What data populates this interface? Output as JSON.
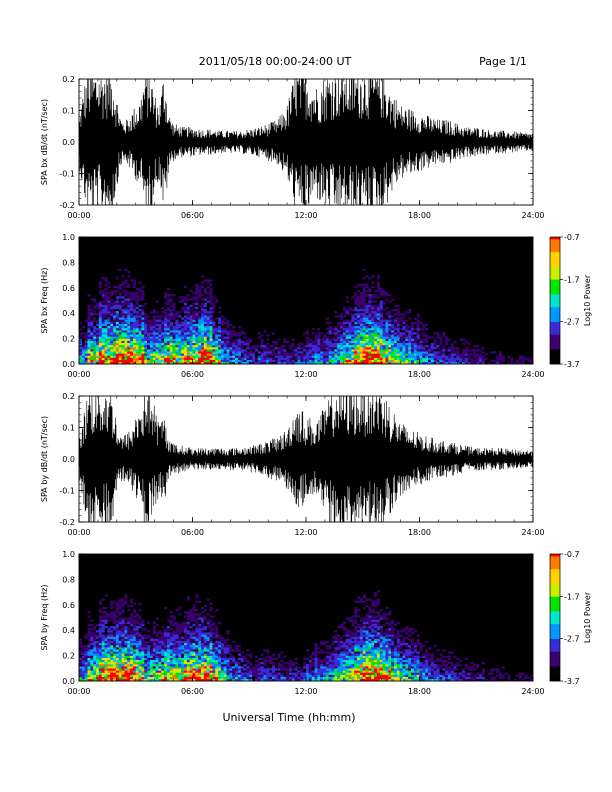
{
  "header": {
    "title": "2011/05/18  00:00-24:00 UT",
    "page": "Page 1/1"
  },
  "xlabel": "Universal Time (hh:mm)",
  "colors": {
    "background": "#ffffff",
    "trace": "#000000",
    "spectrogram_bg": "#000000",
    "colormap": [
      "#000000",
      "#3a006e",
      "#3b2bd6",
      "#0096ff",
      "#00e6c8",
      "#00e600",
      "#c8f000",
      "#ffd200",
      "#ff7800",
      "#ff0000"
    ]
  },
  "chart_data": [
    {
      "id": "bx-timeseries",
      "type": "line",
      "ylabel": "SPA bx dB/dt (nT/sec)",
      "xlim": [
        0,
        24
      ],
      "ylim": [
        -0.2,
        0.2
      ],
      "x_ticks": [
        "00:00",
        "06:00",
        "12:00",
        "18:00",
        "24:00"
      ],
      "y_ticks": [
        "-0.2",
        "-0.1",
        "0.0",
        "0.1",
        "0.2"
      ],
      "series": [
        {
          "x": [
            0,
            0.25,
            0.5,
            0.75,
            1.0,
            1.25,
            1.5,
            1.75,
            2.0,
            2.25,
            2.5,
            2.75,
            3.0,
            3.25,
            3.5,
            3.75,
            4.0,
            4.25,
            4.5,
            4.75,
            5.0,
            5.5,
            6.0,
            6.5,
            7.0,
            7.5,
            8.0,
            8.5,
            9.0,
            9.5,
            10.0,
            10.5,
            11.0,
            11.5,
            12.0,
            12.5,
            13.0,
            13.5,
            14.0,
            14.5,
            15.0,
            15.5,
            16.0,
            16.5,
            17.0,
            17.5,
            18.0,
            18.5,
            19.0,
            19.5,
            20.0,
            20.5,
            21.0,
            21.5,
            22.0,
            22.5,
            23.0,
            23.5,
            24.0
          ],
          "envelope": [
            0.06,
            0.15,
            0.2,
            0.2,
            0.2,
            0.2,
            0.2,
            0.2,
            0.12,
            0.06,
            0.06,
            0.08,
            0.1,
            0.12,
            0.2,
            0.2,
            0.13,
            0.1,
            0.2,
            0.08,
            0.05,
            0.04,
            0.04,
            0.035,
            0.035,
            0.03,
            0.03,
            0.03,
            0.035,
            0.04,
            0.05,
            0.06,
            0.1,
            0.2,
            0.2,
            0.15,
            0.18,
            0.2,
            0.2,
            0.2,
            0.2,
            0.2,
            0.2,
            0.14,
            0.1,
            0.09,
            0.08,
            0.07,
            0.06,
            0.06,
            0.05,
            0.04,
            0.04,
            0.035,
            0.03,
            0.03,
            0.028,
            0.025,
            0.025
          ]
        }
      ]
    },
    {
      "id": "bx-spectrogram",
      "type": "heatmap",
      "ylabel": "SPA bx Freq (Hz)",
      "xlim": [
        0,
        24
      ],
      "ylim": [
        0,
        1.0
      ],
      "x_ticks": [
        "00:00",
        "06:00",
        "12:00",
        "18:00",
        "24:00"
      ],
      "y_ticks": [
        "0.0",
        "0.2",
        "0.4",
        "0.6",
        "0.8",
        "1.0"
      ],
      "colorbar": {
        "label": "Log10 Power",
        "range": [
          -3.7,
          -0.7
        ],
        "ticks": [
          "-0.7",
          "-1.7",
          "-2.7",
          "-3.7"
        ]
      },
      "activity": [
        0.35,
        0.6,
        0.9,
        0.85,
        0.95,
        0.9,
        0.8,
        0.5,
        0.55,
        0.7,
        0.6,
        0.75,
        0.85,
        0.9,
        0.6,
        0.4,
        0.3,
        0.25,
        0.2,
        0.22,
        0.2,
        0.2,
        0.18,
        0.2,
        0.25,
        0.3,
        0.35,
        0.45,
        0.6,
        0.85,
        0.95,
        0.9,
        0.7,
        0.55,
        0.45,
        0.4,
        0.3,
        0.25,
        0.22,
        0.2,
        0.18,
        0.15,
        0.15,
        0.12,
        0.12,
        0.1,
        0.1,
        0.1
      ]
    },
    {
      "id": "by-timeseries",
      "type": "line",
      "ylabel": "SPA by dB/dt (nT/sec)",
      "xlim": [
        0,
        24
      ],
      "ylim": [
        -0.2,
        0.2
      ],
      "x_ticks": [
        "00:00",
        "06:00",
        "12:00",
        "18:00",
        "24:00"
      ],
      "y_ticks": [
        "-0.2",
        "-0.1",
        "0.0",
        "0.1",
        "0.2"
      ],
      "series": [
        {
          "x": [
            0,
            0.25,
            0.5,
            0.75,
            1.0,
            1.25,
            1.5,
            1.75,
            2.0,
            2.25,
            2.5,
            2.75,
            3.0,
            3.25,
            3.5,
            3.75,
            4.0,
            4.25,
            4.5,
            4.75,
            5.0,
            5.5,
            6.0,
            6.5,
            7.0,
            7.5,
            8.0,
            8.5,
            9.0,
            9.5,
            10.0,
            10.5,
            11.0,
            11.5,
            12.0,
            12.5,
            13.0,
            13.5,
            14.0,
            14.5,
            15.0,
            15.5,
            16.0,
            16.5,
            17.0,
            17.5,
            18.0,
            18.5,
            19.0,
            19.5,
            20.0,
            20.5,
            21.0,
            21.5,
            22.0,
            22.5,
            23.0,
            23.5,
            24.0
          ],
          "envelope": [
            0.05,
            0.12,
            0.2,
            0.2,
            0.2,
            0.2,
            0.2,
            0.18,
            0.1,
            0.06,
            0.07,
            0.08,
            0.12,
            0.15,
            0.2,
            0.2,
            0.14,
            0.1,
            0.12,
            0.06,
            0.04,
            0.035,
            0.03,
            0.03,
            0.03,
            0.03,
            0.03,
            0.03,
            0.035,
            0.04,
            0.05,
            0.06,
            0.08,
            0.15,
            0.12,
            0.1,
            0.14,
            0.2,
            0.2,
            0.2,
            0.2,
            0.2,
            0.2,
            0.14,
            0.1,
            0.08,
            0.07,
            0.06,
            0.05,
            0.05,
            0.04,
            0.035,
            0.03,
            0.03,
            0.03,
            0.028,
            0.025,
            0.025,
            0.025
          ]
        }
      ]
    },
    {
      "id": "by-spectrogram",
      "type": "heatmap",
      "ylabel": "SPA by Freq (Hz)",
      "xlim": [
        0,
        24
      ],
      "ylim": [
        0,
        1.0
      ],
      "x_ticks": [
        "00:00",
        "06:00",
        "12:00",
        "18:00",
        "24:00"
      ],
      "y_ticks": [
        "0.0",
        "0.2",
        "0.4",
        "0.6",
        "0.8",
        "1.0"
      ],
      "colorbar": {
        "label": "Log10 Power",
        "range": [
          -3.7,
          -0.7
        ],
        "ticks": [
          "-0.7",
          "-1.7",
          "-2.7",
          "-3.7"
        ]
      },
      "activity": [
        0.35,
        0.6,
        0.85,
        0.85,
        0.9,
        0.85,
        0.75,
        0.5,
        0.55,
        0.7,
        0.65,
        0.8,
        0.85,
        0.85,
        0.6,
        0.4,
        0.3,
        0.25,
        0.2,
        0.22,
        0.2,
        0.2,
        0.18,
        0.2,
        0.25,
        0.3,
        0.35,
        0.45,
        0.55,
        0.8,
        0.95,
        0.9,
        0.75,
        0.55,
        0.45,
        0.4,
        0.3,
        0.25,
        0.22,
        0.2,
        0.18,
        0.15,
        0.15,
        0.12,
        0.12,
        0.1,
        0.1,
        0.1
      ]
    }
  ]
}
